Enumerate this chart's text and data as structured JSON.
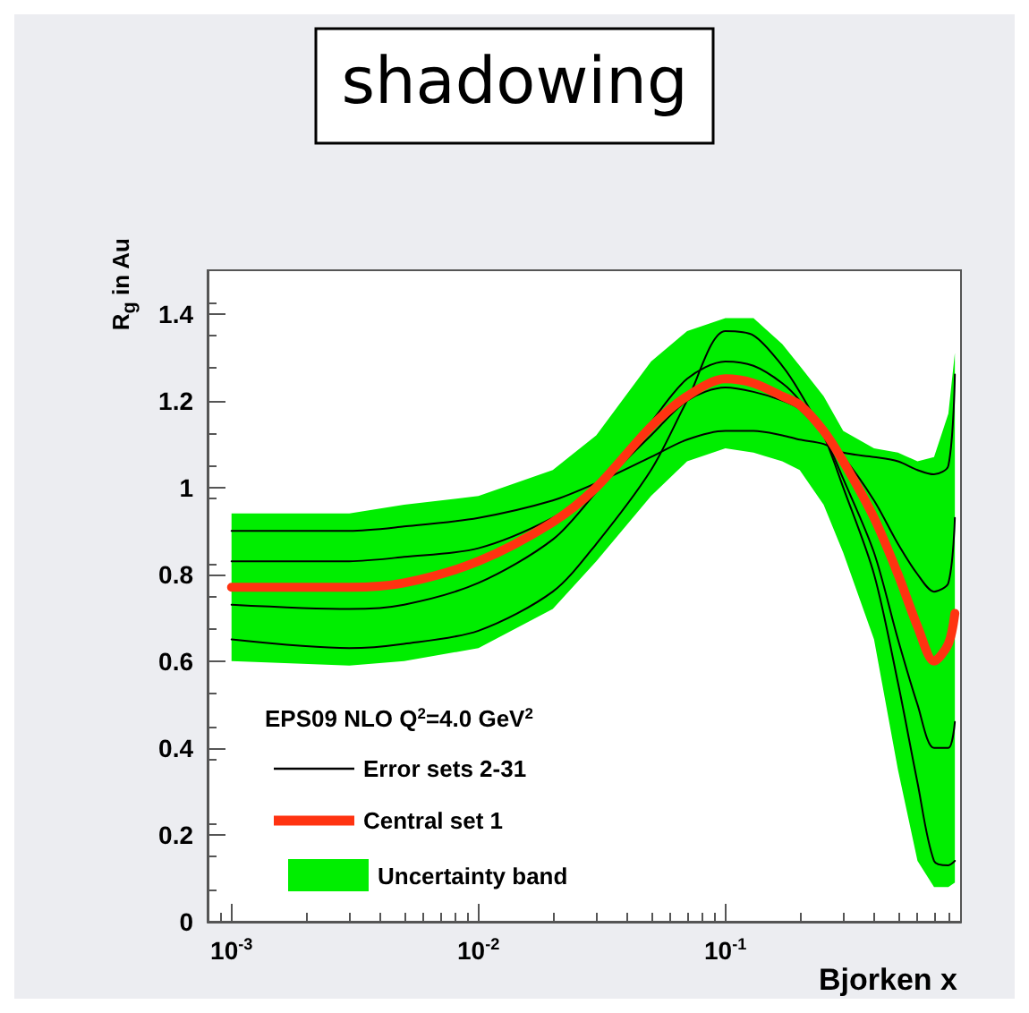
{
  "chart_data": {
    "type": "line",
    "title": "shadowing",
    "xlabel": "Bjorken x",
    "ylabel": "R$_{g}$ in Au",
    "annotations": [
      "EPS09 NLO Q$^{2}$=4.0 GeV$^{2}$",
      "Uncertainty band"
    ],
    "log": "x",
    "xlim": [
      0.0008,
      0.9
    ],
    "xticks": [
      {
        "value": 0.001,
        "label": "10$^{-3}$"
      },
      {
        "value": 0.01,
        "label": "10$^{-2}$"
      },
      {
        "value": 0.1,
        "label": "10$^{-1}$"
      }
    ],
    "ylim": [
      0,
      1.5
    ],
    "yticks": [
      0,
      0.2,
      0.4,
      0.6,
      0.8,
      1,
      1.2,
      1.4
    ],
    "grid": false,
    "legend": "bottom left",
    "marker": "none",
    "line_style": "solid",
    "x": [
      0.001,
      0.003,
      0.005,
      0.01,
      0.02,
      0.03,
      0.05,
      0.07,
      0.1,
      0.13,
      0.17,
      0.2,
      0.25,
      0.3,
      0.4,
      0.5,
      0.6,
      0.7,
      0.8,
      0.85
    ],
    "series": [
      {
        "name": "Error sets 2-31",
        "color": "#000000",
        "values": [
          0.9,
          0.9,
          0.91,
          0.93,
          0.97,
          1.01,
          1.07,
          1.11,
          1.13,
          1.13,
          1.12,
          1.11,
          1.1,
          1.08,
          1.07,
          1.06,
          1.04,
          1.03,
          1.05,
          1.26
        ]
      },
      {
        "color": "#000000",
        "values": [
          0.65,
          0.63,
          0.64,
          0.67,
          0.76,
          0.87,
          1.04,
          1.2,
          1.36,
          1.35,
          1.28,
          1.22,
          1.12,
          1.0,
          0.8,
          0.55,
          0.32,
          0.14,
          0.13,
          0.14
        ]
      },
      {
        "color": "#000000",
        "values": [
          0.83,
          0.83,
          0.84,
          0.86,
          0.93,
          1.0,
          1.12,
          1.2,
          1.23,
          1.22,
          1.2,
          1.18,
          null,
          1.07,
          0.97,
          0.87,
          0.8,
          0.76,
          0.78,
          0.93
        ]
      },
      {
        "color": "#000000",
        "values": [
          0.73,
          0.72,
          0.73,
          0.78,
          0.88,
          0.99,
          1.15,
          1.25,
          1.29,
          1.28,
          1.24,
          1.2,
          1.12,
          1.02,
          0.85,
          0.65,
          0.5,
          0.4,
          0.4,
          0.46
        ]
      },
      {
        "name": "Central set 1",
        "color": "#ff3311",
        "values": [
          0.77,
          0.77,
          0.78,
          0.83,
          0.92,
          1.0,
          1.14,
          1.21,
          1.25,
          1.24,
          1.21,
          1.19,
          1.13,
          1.06,
          0.93,
          0.8,
          0.68,
          0.6,
          0.64,
          0.71
        ],
        "lower": [
          0.6,
          0.59,
          0.6,
          0.63,
          0.72,
          0.83,
          0.98,
          1.06,
          1.09,
          1.08,
          1.06,
          1.04,
          0.96,
          0.85,
          0.65,
          0.35,
          0.14,
          0.08,
          0.08,
          0.09
        ],
        "upper": [
          0.94,
          0.94,
          0.96,
          0.98,
          1.04,
          1.12,
          1.29,
          1.36,
          1.39,
          1.39,
          1.33,
          1.28,
          1.21,
          1.13,
          1.09,
          1.08,
          1.06,
          1.07,
          1.17,
          1.31
        ]
      }
    ]
  }
}
